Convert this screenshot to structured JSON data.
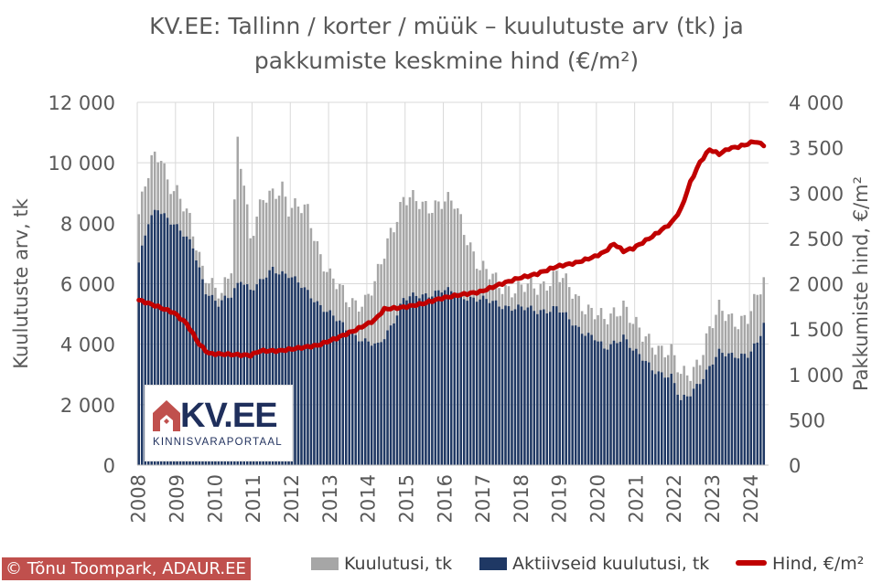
{
  "title_line1": "KV.EE: Tallinn / korter / müük – kuulutuste arv (tk) ja",
  "title_line2": "pakkumiste keskmine hind (€/m²)",
  "logo": {
    "name": "KV.EE",
    "tagline": "KINNISVARAPORTAAL"
  },
  "copyright": "© Tõnu Toompark, ADAUR.EE",
  "legend": {
    "total": "Kuulutusi, tk",
    "active": "Aktiivseid kuulutusi, tk",
    "price": "Hind, €/m²"
  },
  "colors": {
    "total": "#a6a6a6",
    "active": "#1f3864",
    "price": "#c00000",
    "text": "#595959",
    "grid": "#d9d9d9"
  },
  "chart_data": {
    "type": "bar",
    "title": "KV.EE: Tallinn / korter / müük – kuulutuste arv (tk) ja pakkumiste keskmine hind (€/m²)",
    "ylabel": "Kuulutuste arv, tk",
    "y2label": "Pakkumiste hind, €/m²",
    "ylim": [
      0,
      12000
    ],
    "y2lim": [
      0,
      4000
    ],
    "yticks": [
      "0",
      "2 000",
      "4 000",
      "6 000",
      "8 000",
      "10 000",
      "12 000"
    ],
    "y2ticks": [
      "0",
      "500",
      "1 000",
      "1 500",
      "2 000",
      "2 500",
      "3 000",
      "3 500",
      "4 000"
    ],
    "xticks": [
      "2008",
      "2009",
      "2010",
      "2011",
      "2012",
      "2013",
      "2014",
      "2015",
      "2016",
      "2017",
      "2018",
      "2019",
      "2020",
      "2021",
      "2022",
      "2023",
      "2024"
    ],
    "grid": true,
    "legend_position": "bottom",
    "frequency": "monthly, Jan 2008 – May 2024",
    "series": [
      {
        "name": "Kuulutusi, tk",
        "type": "bar",
        "anchors": [
          [
            "2008-01",
            8300
          ],
          [
            "2008-05",
            10000
          ],
          [
            "2008-08",
            10300
          ],
          [
            "2008-10",
            9500
          ],
          [
            "2009-01",
            9000
          ],
          [
            "2009-05",
            8000
          ],
          [
            "2009-09",
            6600
          ],
          [
            "2009-12",
            6000
          ],
          [
            "2010-03",
            5500
          ],
          [
            "2010-06",
            6500
          ],
          [
            "2010-08",
            10800
          ],
          [
            "2010-10",
            9500
          ],
          [
            "2010-12",
            7500
          ],
          [
            "2011-04",
            8700
          ],
          [
            "2011-10",
            9300
          ],
          [
            "2011-12",
            8500
          ],
          [
            "2012-06",
            8400
          ],
          [
            "2012-10",
            7000
          ],
          [
            "2013-01",
            6200
          ],
          [
            "2013-06",
            5500
          ],
          [
            "2013-12",
            5400
          ],
          [
            "2014-03",
            5900
          ],
          [
            "2014-08",
            7800
          ],
          [
            "2014-12",
            8800
          ],
          [
            "2015-06",
            8600
          ],
          [
            "2015-12",
            8700
          ],
          [
            "2016-04",
            8600
          ],
          [
            "2016-08",
            7600
          ],
          [
            "2016-12",
            6500
          ],
          [
            "2017-06",
            6000
          ],
          [
            "2017-12",
            5800
          ],
          [
            "2018-06",
            5900
          ],
          [
            "2018-12",
            6300
          ],
          [
            "2019-06",
            5600
          ],
          [
            "2019-12",
            5000
          ],
          [
            "2020-03",
            4700
          ],
          [
            "2020-09",
            5400
          ],
          [
            "2020-12",
            4700
          ],
          [
            "2021-03",
            4200
          ],
          [
            "2021-09",
            3900
          ],
          [
            "2021-12",
            3700
          ],
          [
            "2022-03",
            2900
          ],
          [
            "2022-06",
            3100
          ],
          [
            "2022-09",
            3600
          ],
          [
            "2022-12",
            4400
          ],
          [
            "2023-03",
            5100
          ],
          [
            "2023-06",
            5000
          ],
          [
            "2023-09",
            4800
          ],
          [
            "2023-12",
            4800
          ],
          [
            "2024-03",
            5500
          ],
          [
            "2024-05",
            6200
          ]
        ]
      },
      {
        "name": "Aktiivseid kuulutusi, tk",
        "type": "bar",
        "anchors": [
          [
            "2008-01",
            6700
          ],
          [
            "2008-04",
            8000
          ],
          [
            "2008-07",
            8500
          ],
          [
            "2008-12",
            8000
          ],
          [
            "2009-06",
            7200
          ],
          [
            "2009-10",
            5800
          ],
          [
            "2010-02",
            5300
          ],
          [
            "2010-06",
            5600
          ],
          [
            "2010-09",
            6200
          ],
          [
            "2010-12",
            5800
          ],
          [
            "2011-03",
            6000
          ],
          [
            "2011-07",
            6500
          ],
          [
            "2011-12",
            6300
          ],
          [
            "2012-06",
            5700
          ],
          [
            "2012-12",
            5100
          ],
          [
            "2013-06",
            4500
          ],
          [
            "2013-12",
            4100
          ],
          [
            "2014-04",
            3900
          ],
          [
            "2014-08",
            4600
          ],
          [
            "2014-12",
            5500
          ],
          [
            "2015-06",
            5600
          ],
          [
            "2015-12",
            5800
          ],
          [
            "2016-06",
            5600
          ],
          [
            "2016-12",
            5500
          ],
          [
            "2017-06",
            5300
          ],
          [
            "2017-12",
            5200
          ],
          [
            "2018-06",
            5100
          ],
          [
            "2018-12",
            5200
          ],
          [
            "2019-06",
            4600
          ],
          [
            "2019-12",
            4200
          ],
          [
            "2020-03",
            3800
          ],
          [
            "2020-09",
            4300
          ],
          [
            "2020-12",
            3800
          ],
          [
            "2021-06",
            3200
          ],
          [
            "2021-12",
            2900
          ],
          [
            "2022-03",
            2100
          ],
          [
            "2022-06",
            2400
          ],
          [
            "2022-09",
            2800
          ],
          [
            "2022-12",
            3200
          ],
          [
            "2023-03",
            3700
          ],
          [
            "2023-06",
            3700
          ],
          [
            "2023-12",
            3600
          ],
          [
            "2024-03",
            4000
          ],
          [
            "2024-05",
            4700
          ]
        ]
      },
      {
        "name": "Hind, €/m²",
        "type": "line",
        "axis": "right",
        "anchors": [
          [
            "2008-01",
            1820
          ],
          [
            "2008-06",
            1760
          ],
          [
            "2008-12",
            1680
          ],
          [
            "2009-04",
            1560
          ],
          [
            "2009-08",
            1330
          ],
          [
            "2009-11",
            1230
          ],
          [
            "2010-06",
            1220
          ],
          [
            "2010-12",
            1210
          ],
          [
            "2011-03",
            1260
          ],
          [
            "2011-09",
            1260
          ],
          [
            "2012-03",
            1290
          ],
          [
            "2012-09",
            1320
          ],
          [
            "2013-03",
            1400
          ],
          [
            "2013-09",
            1490
          ],
          [
            "2014-03",
            1600
          ],
          [
            "2014-06",
            1720
          ],
          [
            "2014-12",
            1740
          ],
          [
            "2015-06",
            1780
          ],
          [
            "2015-12",
            1840
          ],
          [
            "2016-06",
            1880
          ],
          [
            "2016-12",
            1910
          ],
          [
            "2017-06",
            1990
          ],
          [
            "2017-12",
            2060
          ],
          [
            "2018-06",
            2110
          ],
          [
            "2018-12",
            2190
          ],
          [
            "2019-06",
            2230
          ],
          [
            "2019-12",
            2300
          ],
          [
            "2020-03",
            2350
          ],
          [
            "2020-06",
            2440
          ],
          [
            "2020-09",
            2360
          ],
          [
            "2020-12",
            2390
          ],
          [
            "2021-06",
            2520
          ],
          [
            "2021-12",
            2670
          ],
          [
            "2022-03",
            2820
          ],
          [
            "2022-06",
            3120
          ],
          [
            "2022-09",
            3340
          ],
          [
            "2022-12",
            3480
          ],
          [
            "2023-03",
            3430
          ],
          [
            "2023-06",
            3490
          ],
          [
            "2023-09",
            3510
          ],
          [
            "2023-12",
            3540
          ],
          [
            "2024-02",
            3570
          ],
          [
            "2024-05",
            3530
          ]
        ]
      }
    ]
  }
}
